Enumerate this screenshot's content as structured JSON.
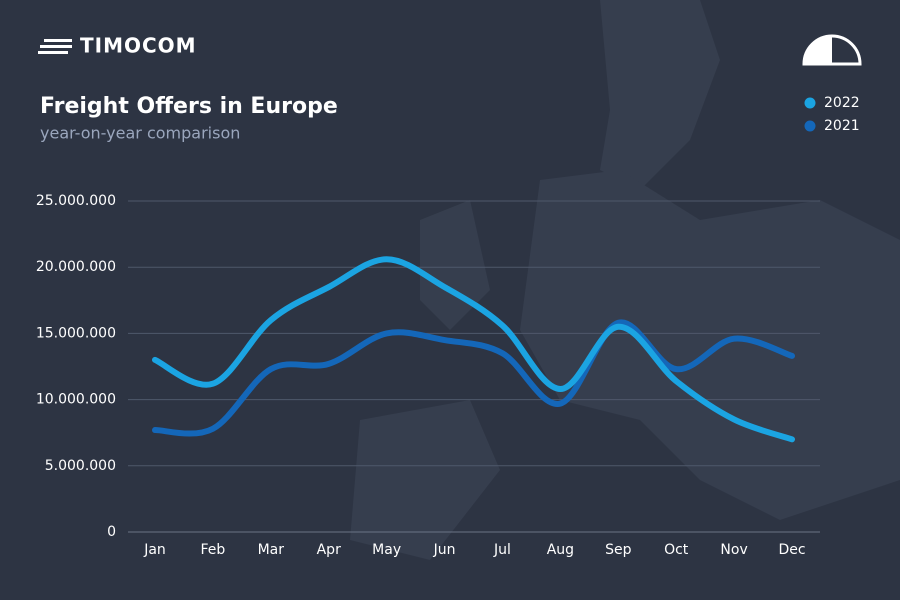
{
  "header": {
    "logo": "TIMOCOM"
  },
  "chart_data": {
    "type": "line",
    "title": "Freight Offers in Europe",
    "subtitle": "year-on-year comparison",
    "categories": [
      "Jan",
      "Feb",
      "Mar",
      "Apr",
      "May",
      "Jun",
      "Jul",
      "Aug",
      "Sep",
      "Oct",
      "Nov",
      "Dec"
    ],
    "series": [
      {
        "name": "2022",
        "color": "#1ba4e2",
        "values": [
          13000000,
          11200000,
          16000000,
          18500000,
          20600000,
          18500000,
          15600000,
          10800000,
          15500000,
          11400000,
          8500000,
          7000000
        ]
      },
      {
        "name": "2021",
        "color": "#1467b9",
        "values": [
          7700000,
          7800000,
          12300000,
          12700000,
          15000000,
          14500000,
          13500000,
          9700000,
          15800000,
          12300000,
          14600000,
          13300000
        ]
      }
    ],
    "ylim": [
      0,
      25000000
    ],
    "yticks": [
      0,
      {
        "value": 5000000,
        "label": "5.000.000"
      },
      {
        "value": 10000000,
        "label": "10.000.000"
      },
      {
        "value": 15000000,
        "label": "15.000.000"
      },
      {
        "value": 20000000,
        "label": "20.000.000"
      },
      {
        "value": 25000000,
        "label": "25.000.000"
      }
    ],
    "grid": true,
    "legend": "top-right"
  }
}
